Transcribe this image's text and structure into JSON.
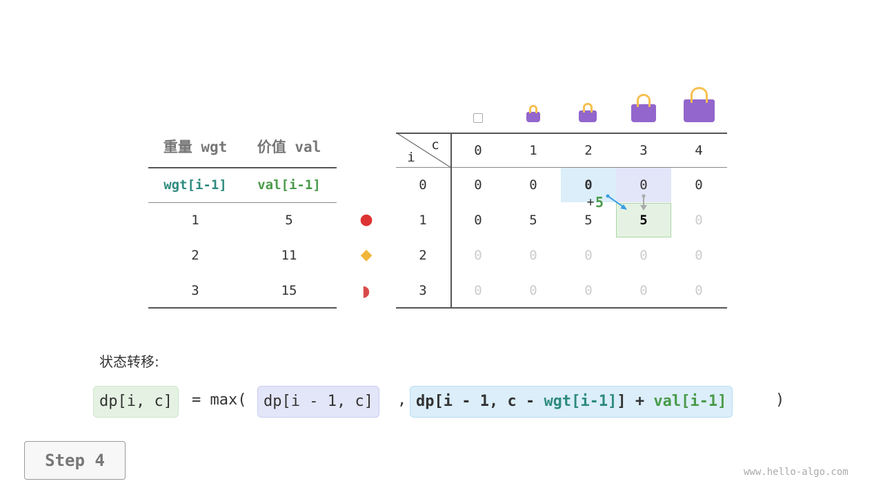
{
  "left_table": {
    "headers": [
      "重量 wgt",
      "价值 val"
    ],
    "subheaders": [
      "wgt[i-1]",
      "val[i-1]"
    ],
    "rows": [
      [
        "1",
        "5"
      ],
      [
        "2",
        "11"
      ],
      [
        "3",
        "15"
      ]
    ]
  },
  "items": [
    "apple",
    "pineapple",
    "watermelon"
  ],
  "dp_table": {
    "corner_i": "i",
    "corner_c": "c",
    "col_headers": [
      "0",
      "1",
      "2",
      "3",
      "4"
    ],
    "row_headers": [
      "0",
      "1",
      "2",
      "3"
    ],
    "rows": [
      [
        "0",
        "0",
        "0",
        "0",
        "0"
      ],
      [
        "0",
        "5",
        "5",
        "5",
        "0"
      ],
      [
        "0",
        "0",
        "0",
        "0",
        "0"
      ],
      [
        "0",
        "0",
        "0",
        "0",
        "0"
      ]
    ]
  },
  "annotation": {
    "plus": "+",
    "value": "5"
  },
  "formula": {
    "label": "状态转移:",
    "lhs": "dp[i, c]",
    "eq": "= max(",
    "arg1": "dp[i - 1, c]",
    "comma": ",",
    "arg2_a": "dp[i - 1, c - ",
    "arg2_wgt": "wgt[i-1]",
    "arg2_b": "] + ",
    "arg2_val": "val[i-1]",
    "close": ")"
  },
  "step_button": "Step 4",
  "watermark": "www.hello-algo.com",
  "colors": {
    "teal": "#2e8b7e",
    "green": "#4a9a4a",
    "blue_cell": "#dbeefa",
    "lavender_cell": "#e3e5f8",
    "green_cell": "#e5f2e3"
  }
}
